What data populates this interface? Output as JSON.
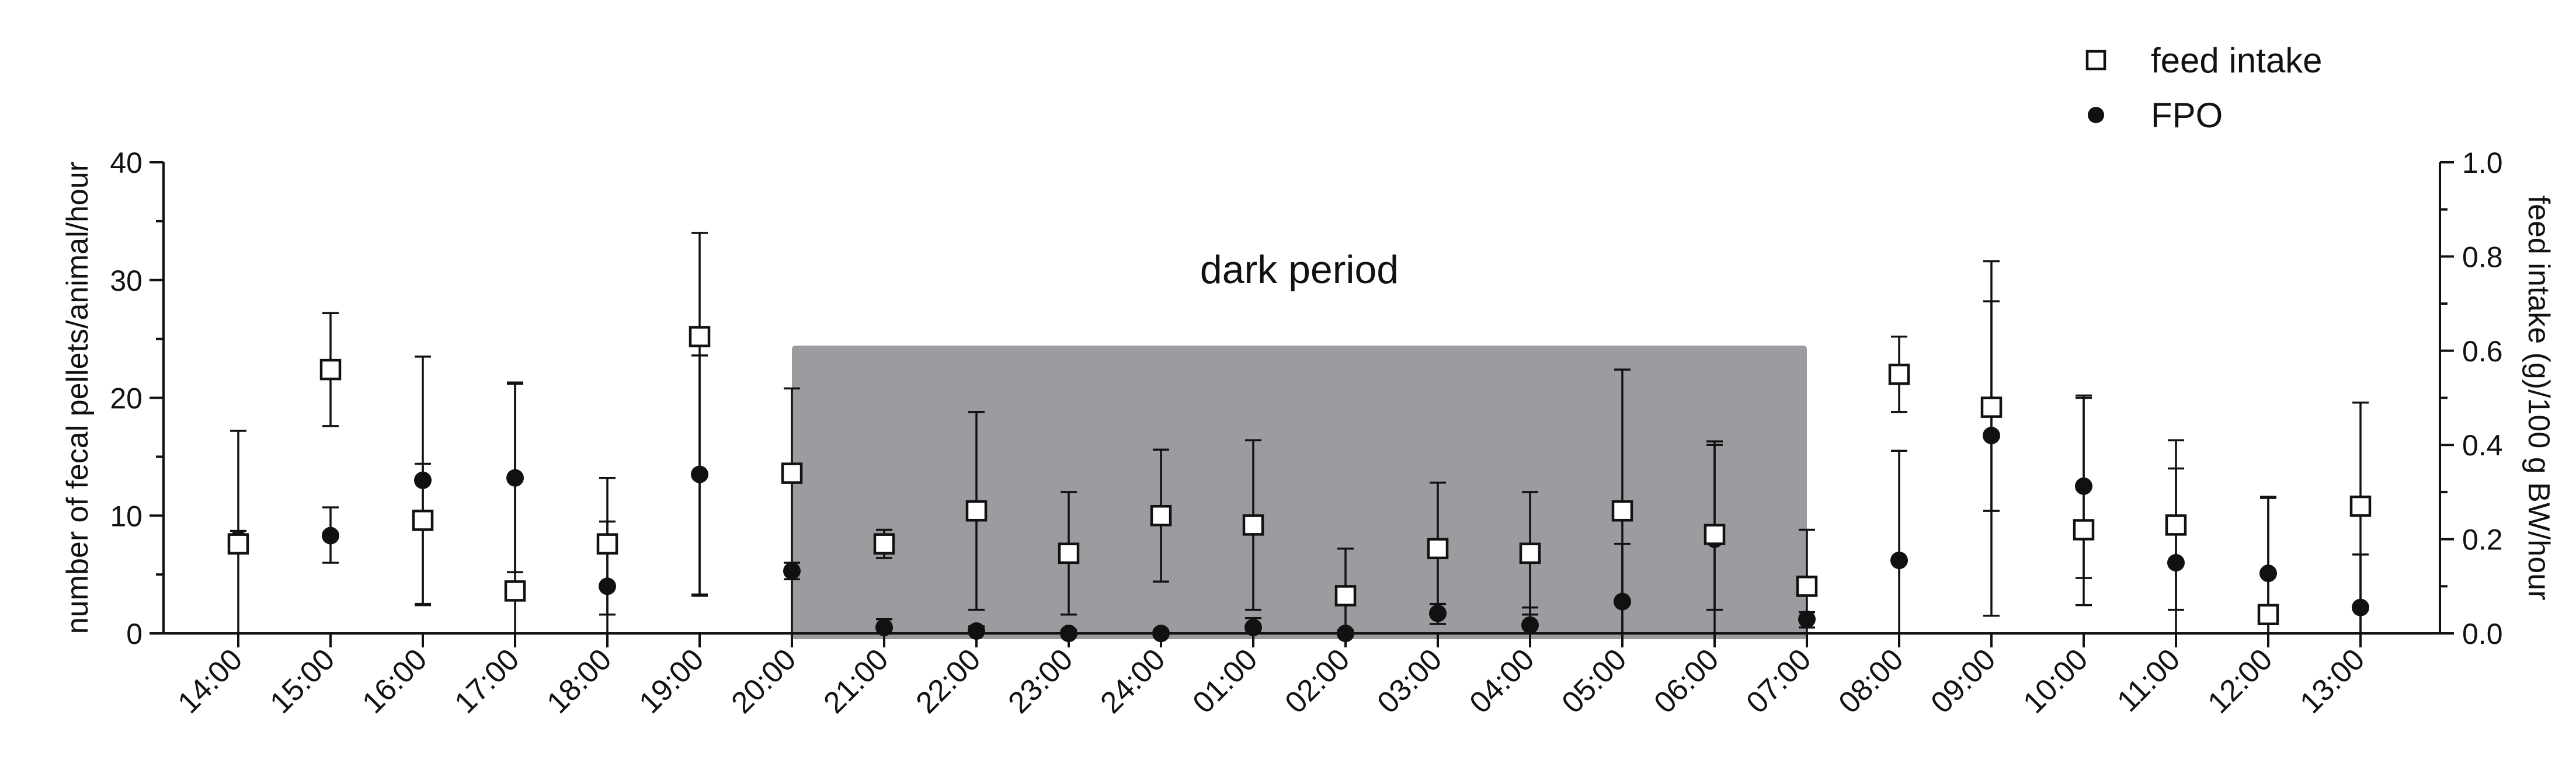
{
  "chart_data": {
    "type": "scatter",
    "categories": [
      "14:00",
      "15:00",
      "16:00",
      "17:00",
      "18:00",
      "19:00",
      "20:00",
      "21:00",
      "22:00",
      "23:00",
      "24:00",
      "01:00",
      "02:00",
      "03:00",
      "04:00",
      "05:00",
      "06:00",
      "07:00",
      "08:00",
      "09:00",
      "10:00",
      "11:00",
      "12:00",
      "13:00"
    ],
    "y_left": {
      "label": "number of fecal pellets/animal/hour",
      "ylim": [
        0,
        40
      ],
      "ticks": [
        "0",
        "10",
        "20",
        "30",
        "40"
      ]
    },
    "y_right": {
      "label": "feed intake (g)/100 g BW/hour",
      "ylim": [
        0,
        1.0
      ],
      "ticks": [
        "0.0",
        "0.2",
        "0.4",
        "0.6",
        "0.8",
        "1.0"
      ]
    },
    "series": [
      {
        "name": "FPO",
        "axis": "left",
        "marker": "filled-circle",
        "values": [
          8.0,
          8.3,
          13.0,
          13.2,
          4.0,
          13.5,
          5.3,
          0.5,
          0.2,
          0.0,
          0.0,
          0.5,
          0.0,
          1.7,
          0.7,
          2.7,
          8.0,
          1.2,
          6.2,
          16.8,
          12.5,
          6.0,
          5.1,
          2.2
        ],
        "err_high": [
          8.7,
          10.7,
          23.5,
          21.3,
          9.5,
          23.6,
          6.0,
          1.2,
          0.6,
          0.3,
          0.3,
          1.3,
          0.3,
          2.5,
          2.2,
          7.6,
          16.3,
          1.8,
          15.5,
          28.2,
          20.2,
          14.0,
          11.5,
          6.7
        ],
        "err_low": [
          7.2,
          6.0,
          2.5,
          5.2,
          0.0,
          3.3,
          4.6,
          0.0,
          0.0,
          0.0,
          0.0,
          0.0,
          0.0,
          0.8,
          0.0,
          0.0,
          0.0,
          0.5,
          0.0,
          1.5,
          4.7,
          0.0,
          0.0,
          0.0
        ]
      },
      {
        "name": "feed intake",
        "axis": "right",
        "marker": "open-square",
        "values": [
          0.19,
          0.56,
          0.24,
          0.09,
          0.19,
          0.63,
          0.34,
          0.19,
          0.26,
          0.17,
          0.25,
          0.23,
          0.08,
          0.18,
          0.17,
          0.26,
          0.21,
          0.1,
          0.55,
          0.48,
          0.22,
          0.23,
          0.04,
          0.27
        ],
        "err_high": [
          0.43,
          0.68,
          0.36,
          0.53,
          0.33,
          0.85,
          0.52,
          0.22,
          0.47,
          0.3,
          0.39,
          0.41,
          0.18,
          0.32,
          0.3,
          0.56,
          0.4,
          0.22,
          0.63,
          0.79,
          0.5,
          0.41,
          0.29,
          0.49
        ],
        "err_low": [
          0.0,
          0.44,
          0.06,
          0.0,
          0.04,
          0.08,
          0.0,
          0.16,
          0.05,
          0.04,
          0.11,
          0.05,
          0.0,
          0.04,
          0.04,
          0.0,
          0.05,
          0.0,
          0.47,
          0.26,
          0.06,
          0.05,
          0.0,
          0.0
        ]
      }
    ],
    "annotation": {
      "text": "dark period",
      "from": "20:00",
      "to": "07:00",
      "color": "#9c9ba0"
    },
    "legend": {
      "position": "top-right"
    }
  }
}
